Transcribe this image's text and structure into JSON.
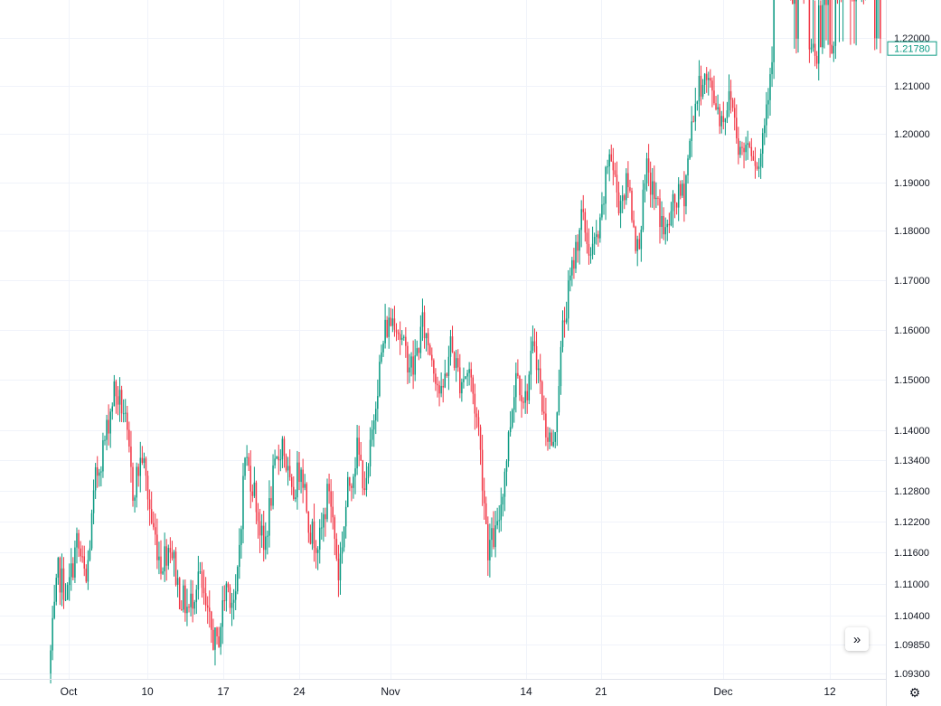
{
  "chart_data": {
    "type": "candlestick",
    "symbol": "",
    "y_ticks": [
      "1.22000",
      "1.21000",
      "1.20000",
      "1.19000",
      "1.18000",
      "1.17000",
      "1.16000",
      "1.15000",
      "1.14000",
      "1.13400",
      "1.12800",
      "1.12200",
      "1.11600",
      "1.11000",
      "1.10400",
      "1.09850",
      "1.09300"
    ],
    "x_ticks": [
      "Oct",
      "10",
      "17",
      "24",
      "Nov",
      "14",
      "21",
      "Dec",
      "12"
    ],
    "last_price": "1.21780",
    "colors": {
      "up": "#089981",
      "down": "#f23645",
      "grid": "#f0f3fa",
      "badge": "#089981"
    },
    "path_points": [
      [
        1.093,
        1.112
      ],
      [
        1.112,
        1.108
      ],
      [
        1.108,
        1.118
      ],
      [
        1.118,
        1.11
      ],
      [
        1.11,
        1.13
      ],
      [
        1.13,
        1.138
      ],
      [
        1.138,
        1.148
      ],
      [
        1.148,
        1.144
      ],
      [
        1.144,
        1.128
      ],
      [
        1.128,
        1.135
      ],
      [
        1.135,
        1.122
      ],
      [
        1.122,
        1.114
      ],
      [
        1.114,
        1.118
      ],
      [
        1.118,
        1.108
      ],
      [
        1.108,
        1.105
      ],
      [
        1.105,
        1.112
      ],
      [
        1.112,
        1.103
      ],
      [
        1.103,
        1.098
      ],
      [
        1.098,
        1.11
      ],
      [
        1.11,
        1.106
      ],
      [
        1.106,
        1.135
      ],
      [
        1.135,
        1.128
      ],
      [
        1.128,
        1.116
      ],
      [
        1.116,
        1.13
      ],
      [
        1.13,
        1.138
      ],
      [
        1.138,
        1.126
      ],
      [
        1.126,
        1.134
      ],
      [
        1.134,
        1.12
      ],
      [
        1.12,
        1.118
      ],
      [
        1.118,
        1.129
      ],
      [
        1.129,
        1.112
      ],
      [
        1.112,
        1.128
      ],
      [
        1.128,
        1.136
      ],
      [
        1.136,
        1.128
      ],
      [
        1.128,
        1.147
      ],
      [
        1.147,
        1.16
      ],
      [
        1.16,
        1.163
      ],
      [
        1.163,
        1.156
      ],
      [
        1.156,
        1.152
      ],
      [
        1.152,
        1.161
      ],
      [
        1.161,
        1.155
      ],
      [
        1.155,
        1.146
      ],
      [
        1.146,
        1.157
      ],
      [
        1.157,
        1.15
      ],
      [
        1.15,
        1.152
      ],
      [
        1.152,
        1.14
      ],
      [
        1.14,
        1.117
      ],
      [
        1.117,
        1.12
      ],
      [
        1.12,
        1.135
      ],
      [
        1.135,
        1.152
      ],
      [
        1.152,
        1.146
      ],
      [
        1.146,
        1.158
      ],
      [
        1.158,
        1.142
      ],
      [
        1.142,
        1.136
      ],
      [
        1.136,
        1.16
      ],
      [
        1.16,
        1.172
      ],
      [
        1.172,
        1.183
      ],
      [
        1.183,
        1.175
      ],
      [
        1.175,
        1.18
      ],
      [
        1.18,
        1.197
      ],
      [
        1.197,
        1.186
      ],
      [
        1.186,
        1.19
      ],
      [
        1.19,
        1.176
      ],
      [
        1.176,
        1.192
      ],
      [
        1.192,
        1.186
      ],
      [
        1.186,
        1.179
      ],
      [
        1.179,
        1.186
      ],
      [
        1.186,
        1.188
      ],
      [
        1.188,
        1.205
      ],
      [
        1.205,
        1.212
      ],
      [
        1.212,
        1.209
      ],
      [
        1.209,
        1.203
      ],
      [
        1.203,
        1.208
      ],
      [
        1.208,
        1.196
      ],
      [
        1.196,
        1.199
      ],
      [
        1.199,
        1.193
      ],
      [
        1.193,
        1.21
      ],
      [
        1.21,
        1.228
      ],
      [
        1.228,
        1.224
      ],
      [
        1.224,
        1.219
      ],
      [
        1.219,
        1.225
      ],
      [
        1.225,
        1.214
      ],
      [
        1.214,
        1.222
      ],
      [
        1.222,
        1.219
      ],
      [
        1.219,
        1.226
      ],
      [
        1.226,
        1.221
      ],
      [
        1.221,
        1.225
      ],
      [
        1.225,
        1.226
      ],
      [
        1.226,
        1.2178
      ]
    ]
  }
}
